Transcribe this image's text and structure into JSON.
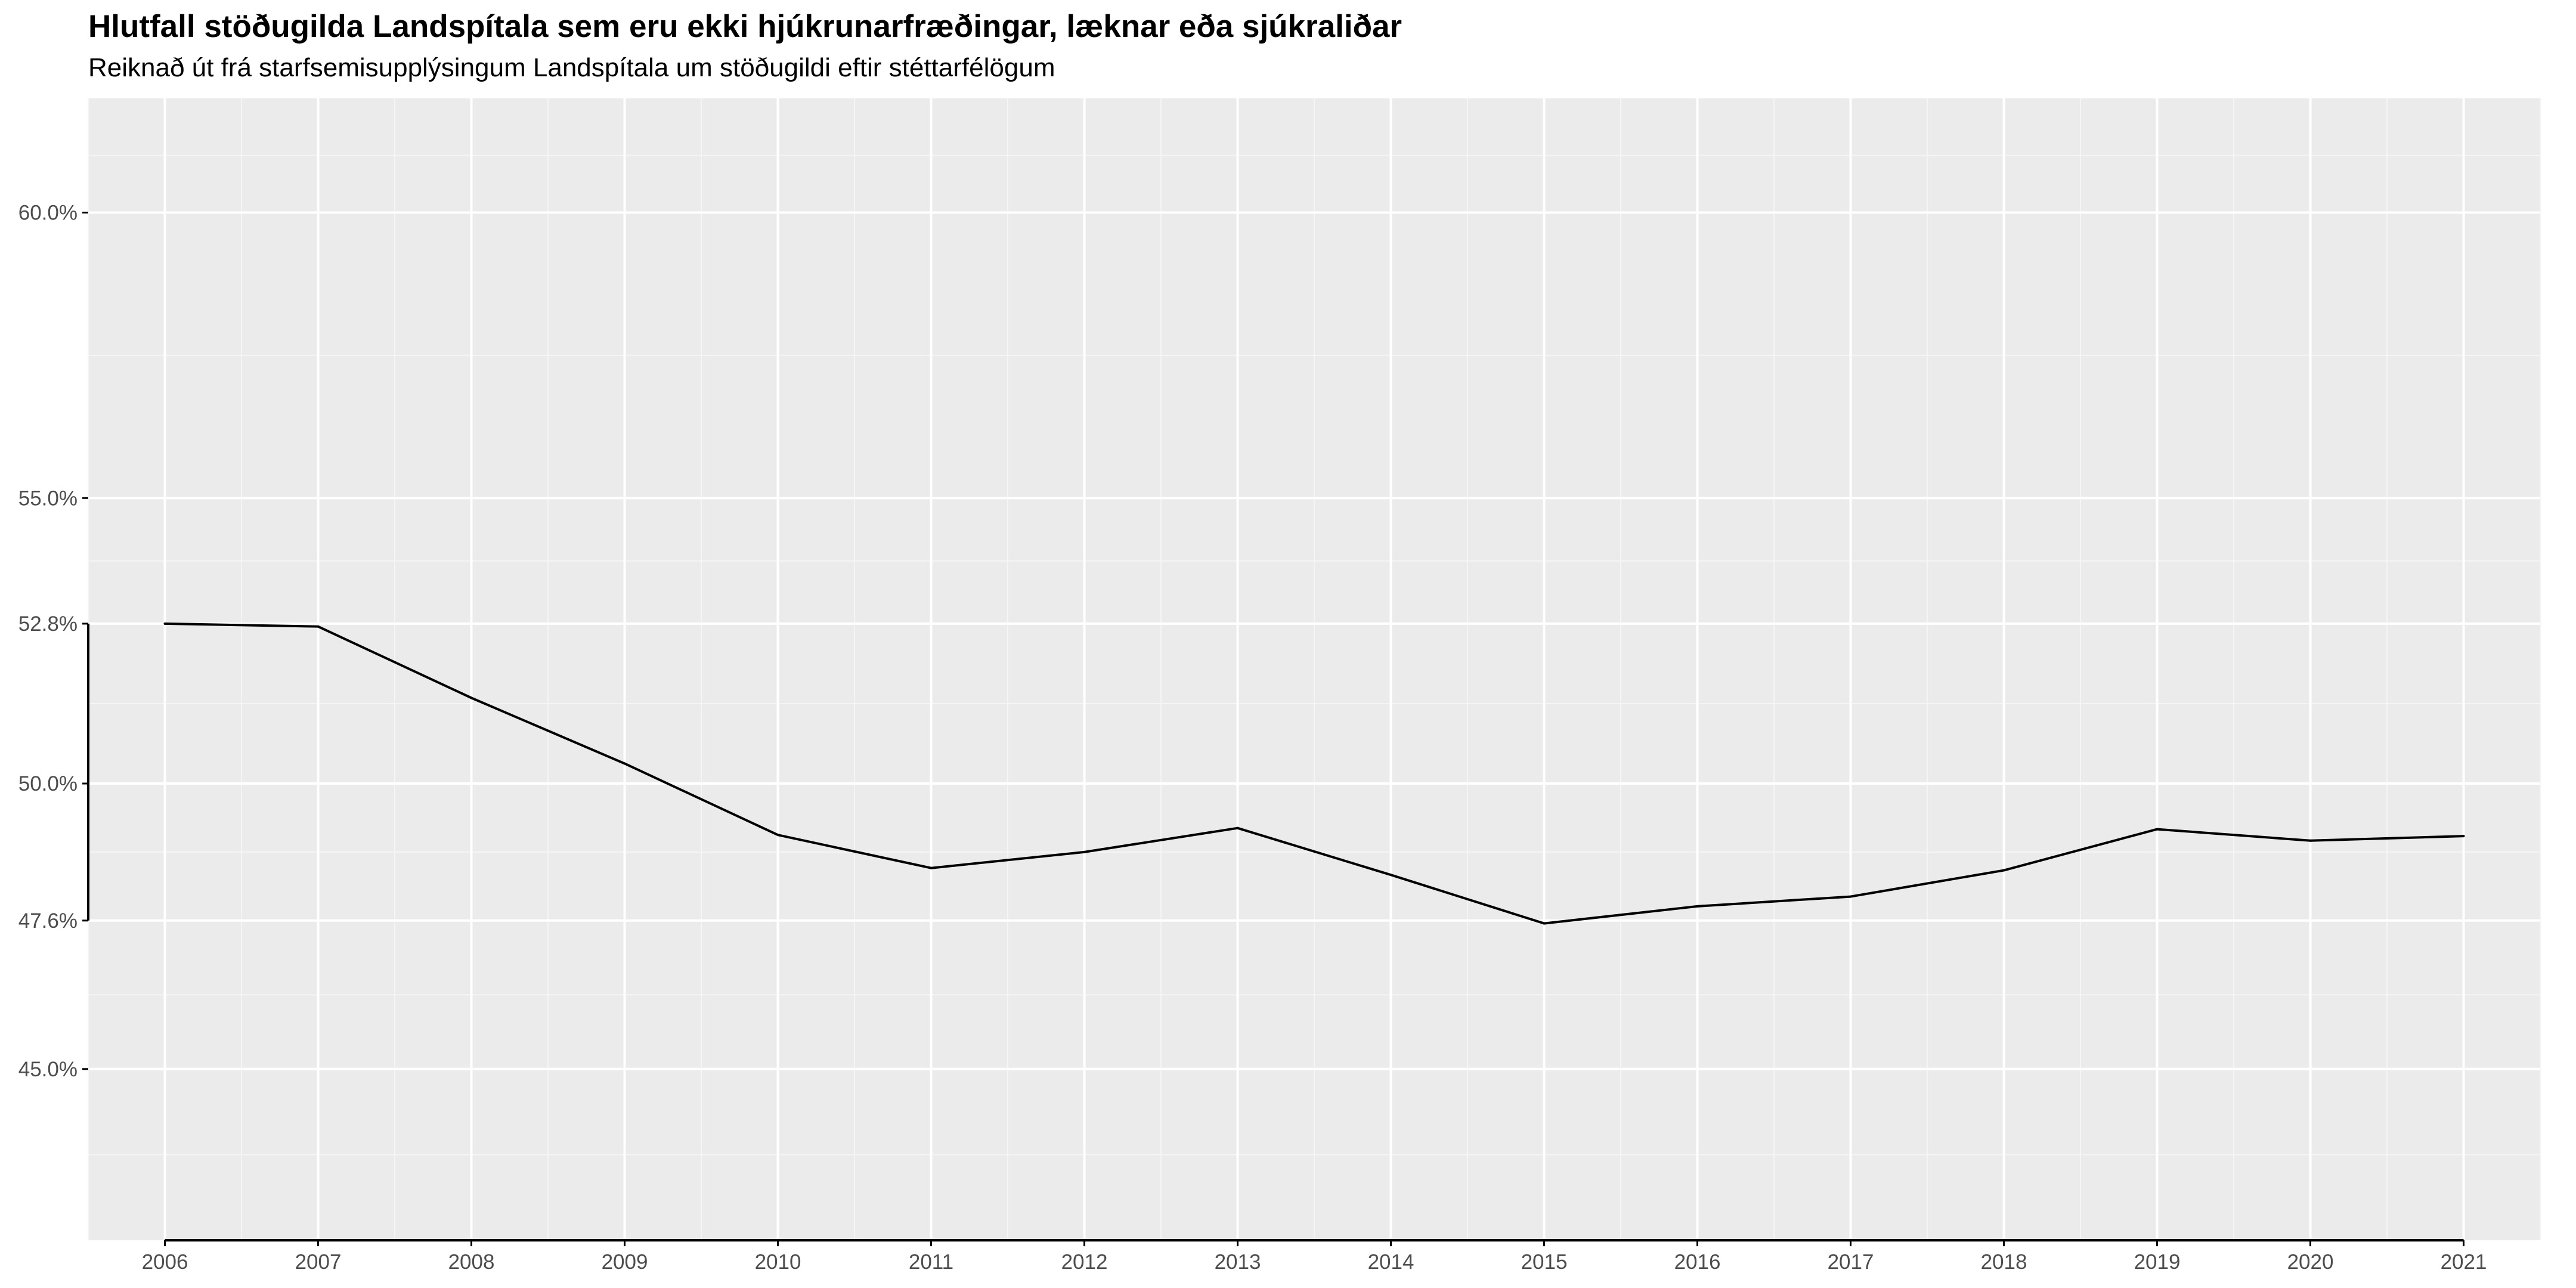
{
  "chart_data": {
    "type": "line",
    "title": "Hlutfall stöðugilda Landspítala sem eru ekki hjúkrunarfræðingar, læknar eða sjúkraliðar",
    "subtitle": "Reiknað út frá starfsemisupplýsingum Landspítala um stöðugildi eftir stéttarfélögum",
    "xlabel": "",
    "ylabel": "",
    "x": [
      2006,
      2007,
      2008,
      2009,
      2010,
      2011,
      2012,
      2013,
      2014,
      2015,
      2016,
      2017,
      2018,
      2019,
      2020,
      2021
    ],
    "series": [
      {
        "values": [
          52.8,
          52.75,
          51.5,
          50.35,
          49.1,
          48.52,
          48.8,
          49.22,
          48.4,
          47.55,
          47.85,
          48.02,
          48.48,
          49.2,
          49.0,
          49.08
        ]
      }
    ],
    "xlim": [
      2005.5,
      2021.5
    ],
    "ylim": [
      42.0,
      62.0
    ],
    "y_ticks": [
      45.0,
      47.6,
      50.0,
      52.8,
      55.0,
      60.0
    ],
    "y_tick_labels": [
      "45.0%",
      "47.6%",
      "50.0%",
      "52.8%",
      "55.0%",
      "60.0%"
    ],
    "x_tick_labels": [
      "2006",
      "2007",
      "2008",
      "2009",
      "2010",
      "2011",
      "2012",
      "2013",
      "2014",
      "2015",
      "2016",
      "2017",
      "2018",
      "2019",
      "2020",
      "2021"
    ],
    "y_range_frame": [
      47.6,
      52.8
    ],
    "x_range_frame": [
      2006,
      2021
    ],
    "grid": true,
    "legend": "none",
    "colors": {
      "panel": "#ebebeb",
      "grid_major": "#ffffff",
      "grid_minor": "#f5f5f5",
      "line": "#000000",
      "axis": "#000000",
      "tick_text": "#4d4d4d"
    }
  }
}
